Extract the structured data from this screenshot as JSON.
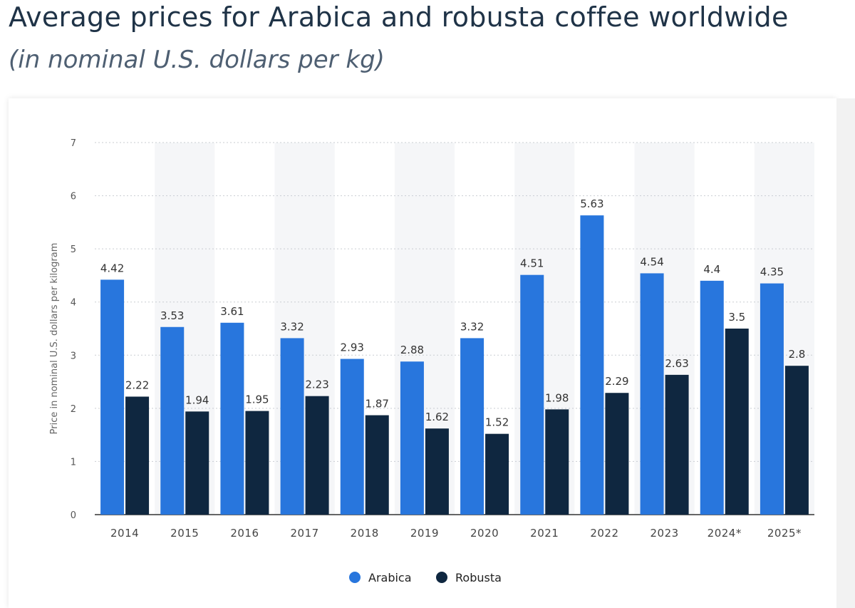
{
  "header": {
    "title": "Average prices for Arabica and robusta coffee worldwide",
    "subtitle": "(in nominal U.S. dollars per kg)"
  },
  "colors": {
    "arabica": "#2876dd",
    "robusta": "#0f2740",
    "band": "#f5f6f8",
    "grid": "#c9cdd2",
    "axis": "#333333"
  },
  "chart_data": {
    "type": "bar",
    "title": "Average prices for Arabica and robusta coffee worldwide",
    "subtitle": "(in nominal U.S. dollars per kg)",
    "xlabel": "",
    "ylabel": "Price in nominal U.S. dollars per kilogram",
    "ylim": [
      0,
      7
    ],
    "yticks": [
      0,
      1,
      2,
      3,
      4,
      5,
      6,
      7
    ],
    "grid": true,
    "legend_position": "bottom-center",
    "categories": [
      "2014",
      "2015",
      "2016",
      "2017",
      "2018",
      "2019",
      "2020",
      "2021",
      "2022",
      "2023",
      "2024*",
      "2025*"
    ],
    "series": [
      {
        "name": "Arabica",
        "values": [
          4.42,
          3.53,
          3.61,
          3.32,
          2.93,
          2.88,
          3.32,
          4.51,
          5.63,
          4.54,
          4.4,
          4.35
        ]
      },
      {
        "name": "Robusta",
        "values": [
          2.22,
          1.94,
          1.95,
          2.23,
          1.87,
          1.62,
          1.52,
          1.98,
          2.29,
          2.63,
          3.5,
          2.8
        ]
      }
    ]
  }
}
